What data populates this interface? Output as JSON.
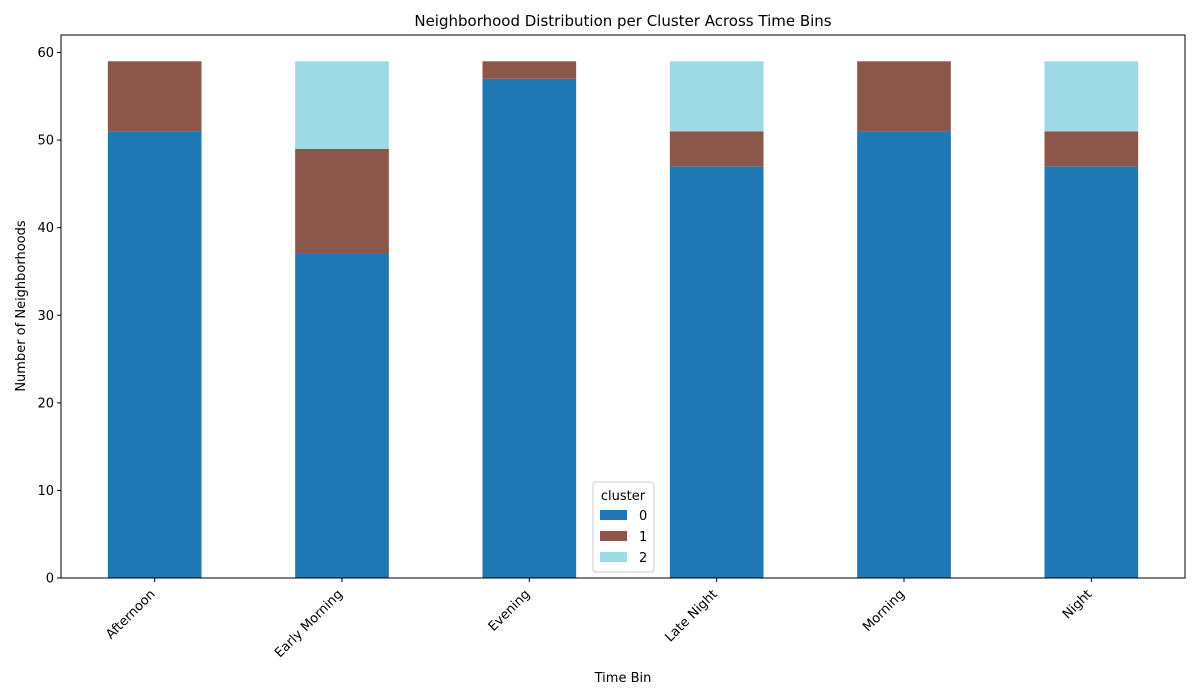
{
  "chart_data": {
    "type": "bar",
    "stacked": true,
    "title": "Neighborhood Distribution per Cluster Across Time Bins",
    "xlabel": "Time Bin",
    "ylabel": "Number of Neighborhoods",
    "ylim": [
      0,
      62
    ],
    "yticks": [
      0,
      10,
      20,
      30,
      40,
      50,
      60
    ],
    "categories": [
      "Afternoon",
      "Early Morning",
      "Evening",
      "Late Night",
      "Morning",
      "Night"
    ],
    "series": [
      {
        "name": "0",
        "color": "#1f77b4",
        "values": [
          51,
          37,
          57,
          47,
          51,
          47
        ]
      },
      {
        "name": "1",
        "color": "#8c564b",
        "values": [
          8,
          12,
          2,
          4,
          8,
          4
        ]
      },
      {
        "name": "2",
        "color": "#9edae5",
        "values": [
          0,
          10,
          0,
          8,
          0,
          8
        ]
      }
    ],
    "legend": {
      "title": "cluster",
      "placement": "lower center"
    },
    "grid": false
  }
}
